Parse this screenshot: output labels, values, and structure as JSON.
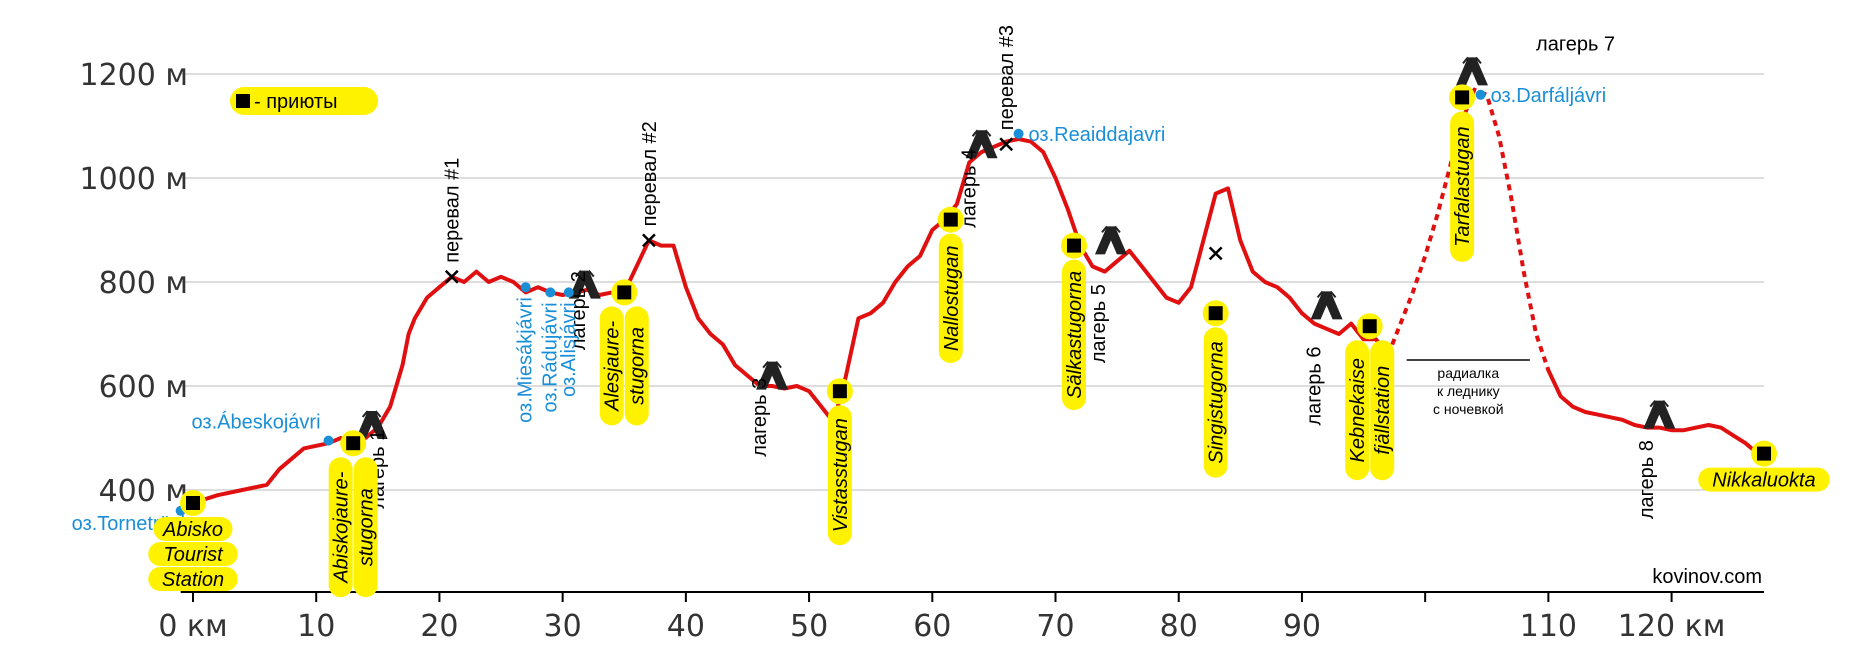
{
  "chart_data": {
    "type": "line",
    "title": "",
    "xlabel": "",
    "ylabel": "",
    "xlim": [
      -1,
      128
    ],
    "ylim": [
      200,
      1300
    ],
    "y_ticks": [
      {
        "value": 400,
        "label": "400 м"
      },
      {
        "value": 600,
        "label": "600 м"
      },
      {
        "value": 800,
        "label": "800 м"
      },
      {
        "value": 1000,
        "label": "1000 м"
      },
      {
        "value": 1200,
        "label": "1200 м"
      }
    ],
    "x_ticks": [
      {
        "value": 0,
        "label": "0 км"
      },
      {
        "value": 10,
        "label": "10"
      },
      {
        "value": 20,
        "label": "20"
      },
      {
        "value": 30,
        "label": "30"
      },
      {
        "value": 40,
        "label": "40"
      },
      {
        "value": 50,
        "label": "50"
      },
      {
        "value": 60,
        "label": "60"
      },
      {
        "value": 70,
        "label": "70"
      },
      {
        "value": 80,
        "label": "80"
      },
      {
        "value": 90,
        "label": "90"
      },
      {
        "value": 100,
        "label": ""
      },
      {
        "value": 110,
        "label": "110"
      },
      {
        "value": 120,
        "label": "120 км"
      }
    ],
    "grid": true,
    "line_color": "#e01010",
    "series": [
      {
        "name": "",
        "style": "solid",
        "x": [
          -1,
          0,
          2,
          4,
          6,
          7,
          8,
          9,
          11,
          12,
          13,
          14,
          15,
          16,
          17,
          17.5,
          18,
          19,
          20,
          21,
          22,
          23,
          24,
          25,
          26,
          27,
          28,
          29,
          30,
          31,
          32,
          33,
          34,
          35,
          36,
          37,
          38,
          39,
          40,
          41,
          42,
          43,
          44,
          45,
          46,
          47,
          48,
          49,
          50,
          51,
          52,
          53,
          54,
          55,
          56,
          57,
          58,
          59,
          60,
          61,
          62,
          63,
          64,
          65,
          66,
          67,
          68,
          69,
          70,
          71,
          72,
          73,
          74,
          75,
          76,
          77,
          78,
          79,
          80,
          81,
          82,
          83,
          84,
          85,
          86,
          87,
          88,
          89,
          90,
          91,
          92,
          93,
          94,
          95,
          96,
          97
        ],
        "y": [
          360,
          375,
          390,
          400,
          410,
          440,
          460,
          480,
          490,
          500,
          490,
          500,
          520,
          560,
          640,
          700,
          730,
          770,
          790,
          810,
          800,
          820,
          800,
          810,
          800,
          780,
          790,
          780,
          775,
          780,
          785,
          775,
          780,
          780,
          830,
          880,
          870,
          870,
          790,
          730,
          700,
          680,
          640,
          620,
          600,
          600,
          595,
          600,
          590,
          560,
          530,
          620,
          730,
          740,
          760,
          800,
          830,
          850,
          900,
          920,
          950,
          1030,
          1050,
          1060,
          1070,
          1075,
          1070,
          1050,
          1000,
          940,
          870,
          830,
          820,
          840,
          860,
          830,
          800,
          770,
          760,
          790,
          880,
          970,
          980,
          880,
          820,
          800,
          790,
          770,
          740,
          720,
          710,
          700,
          720,
          690,
          690,
          660
        ]
      },
      {
        "name": "",
        "style": "dashed",
        "x": [
          97,
          98,
          99,
          100,
          101,
          102,
          103,
          104,
          105,
          106,
          107,
          108,
          109,
          110
        ],
        "y": [
          660,
          720,
          780,
          850,
          930,
          1020,
          1110,
          1170,
          1160,
          1080,
          960,
          820,
          700,
          630
        ]
      },
      {
        "name": "",
        "style": "solid",
        "x": [
          110,
          111,
          112,
          113,
          114,
          115,
          116,
          117,
          118,
          119,
          120,
          121,
          122,
          123,
          124,
          125,
          126,
          127
        ],
        "y": [
          630,
          580,
          560,
          550,
          545,
          540,
          535,
          525,
          520,
          520,
          515,
          515,
          520,
          525,
          520,
          505,
          490,
          470
        ]
      }
    ],
    "huts": [
      {
        "x": 0,
        "y": 375,
        "label": [
          "Abisko",
          "Tourist",
          "Station"
        ],
        "orient": "below"
      },
      {
        "x": 13,
        "y": 490,
        "label": [
          "Abiskojaure-",
          "stugorna"
        ],
        "orient": "vert"
      },
      {
        "x": 35,
        "y": 780,
        "label": [
          "Alesjaure-",
          "stugorna"
        ],
        "orient": "vert"
      },
      {
        "x": 52.5,
        "y": 590,
        "label": [
          "Vistasstugan"
        ],
        "orient": "vert"
      },
      {
        "x": 61.5,
        "y": 920,
        "label": [
          "Nallostugan"
        ],
        "orient": "vert"
      },
      {
        "x": 71.5,
        "y": 870,
        "label": [
          "Sälkastugorna"
        ],
        "orient": "vert"
      },
      {
        "x": 83,
        "y": 740,
        "label": [
          "Singistugorna"
        ],
        "orient": "vert"
      },
      {
        "x": 95.5,
        "y": 715,
        "label": [
          "Kebnekaise",
          "fjällstation"
        ],
        "orient": "vert"
      },
      {
        "x": 103,
        "y": 1155,
        "label": [
          "Tarfalastugan"
        ],
        "orient": "vert"
      },
      {
        "x": 127.5,
        "y": 470,
        "label": [
          "Nikkaluokta"
        ],
        "orient": "below"
      }
    ],
    "lakes": [
      {
        "x": -1,
        "y": 360,
        "label": "оз.Torneträsk",
        "pos": "left"
      },
      {
        "x": 11,
        "y": 495,
        "label": "оз.Ábeskojávri",
        "pos": "upleft"
      },
      {
        "x": 27,
        "y": 790,
        "label": "оз.Miesákjávri",
        "pos": "vert"
      },
      {
        "x": 29,
        "y": 780,
        "label": "оз.Rádujávri",
        "pos": "vert"
      },
      {
        "x": 30.5,
        "y": 780,
        "label": "оз.Alisjávri",
        "pos": "vert"
      },
      {
        "x": 67,
        "y": 1085,
        "label": "оз.Reaiddajavri",
        "pos": "right"
      },
      {
        "x": 104.5,
        "y": 1160,
        "label": "оз.Darfáljávri",
        "pos": "right"
      }
    ],
    "passes": [
      {
        "x": 21,
        "y": 810,
        "label": "перевал #1"
      },
      {
        "x": 37,
        "y": 880,
        "label": "перевал #2"
      },
      {
        "x": 66,
        "y": 1065,
        "label": "перевал #3"
      },
      {
        "x": 83,
        "y": 855,
        "label": ""
      }
    ],
    "camps": [
      {
        "x": 14.5,
        "y": 525,
        "label": "лагерь 1",
        "lx": 15.5,
        "ly": 440
      },
      {
        "x": 31.8,
        "y": 795,
        "label": "лагерь 2",
        "lx": 31.8,
        "ly": 745
      },
      {
        "x": 47,
        "y": 620,
        "label": "лагерь 3",
        "lx": 46.5,
        "ly": 540
      },
      {
        "x": 64,
        "y": 1065,
        "label": "лагерь 4",
        "lx": 63.5,
        "ly": 980
      },
      {
        "x": 74.5,
        "y": 880,
        "label": "лагерь 5",
        "lx": 74,
        "ly": 720
      },
      {
        "x": 92,
        "y": 755,
        "label": "лагерь 6",
        "lx": 91.5,
        "ly": 600
      },
      {
        "x": 103.8,
        "y": 1205,
        "label": "лагерь 7",
        "lx": 109,
        "ly": 1245
      },
      {
        "x": 119,
        "y": 545,
        "label": "лагерь 8",
        "lx": 118.5,
        "ly": 420
      }
    ],
    "radial": {
      "x1": 98.5,
      "x2": 108.5,
      "y": 650,
      "lines": [
        "радиалка",
        "к леднику",
        "с ночевкой"
      ]
    },
    "legend": {
      "label": "-   приюты",
      "placement": "top-left"
    },
    "credit": "kovinov.com"
  }
}
